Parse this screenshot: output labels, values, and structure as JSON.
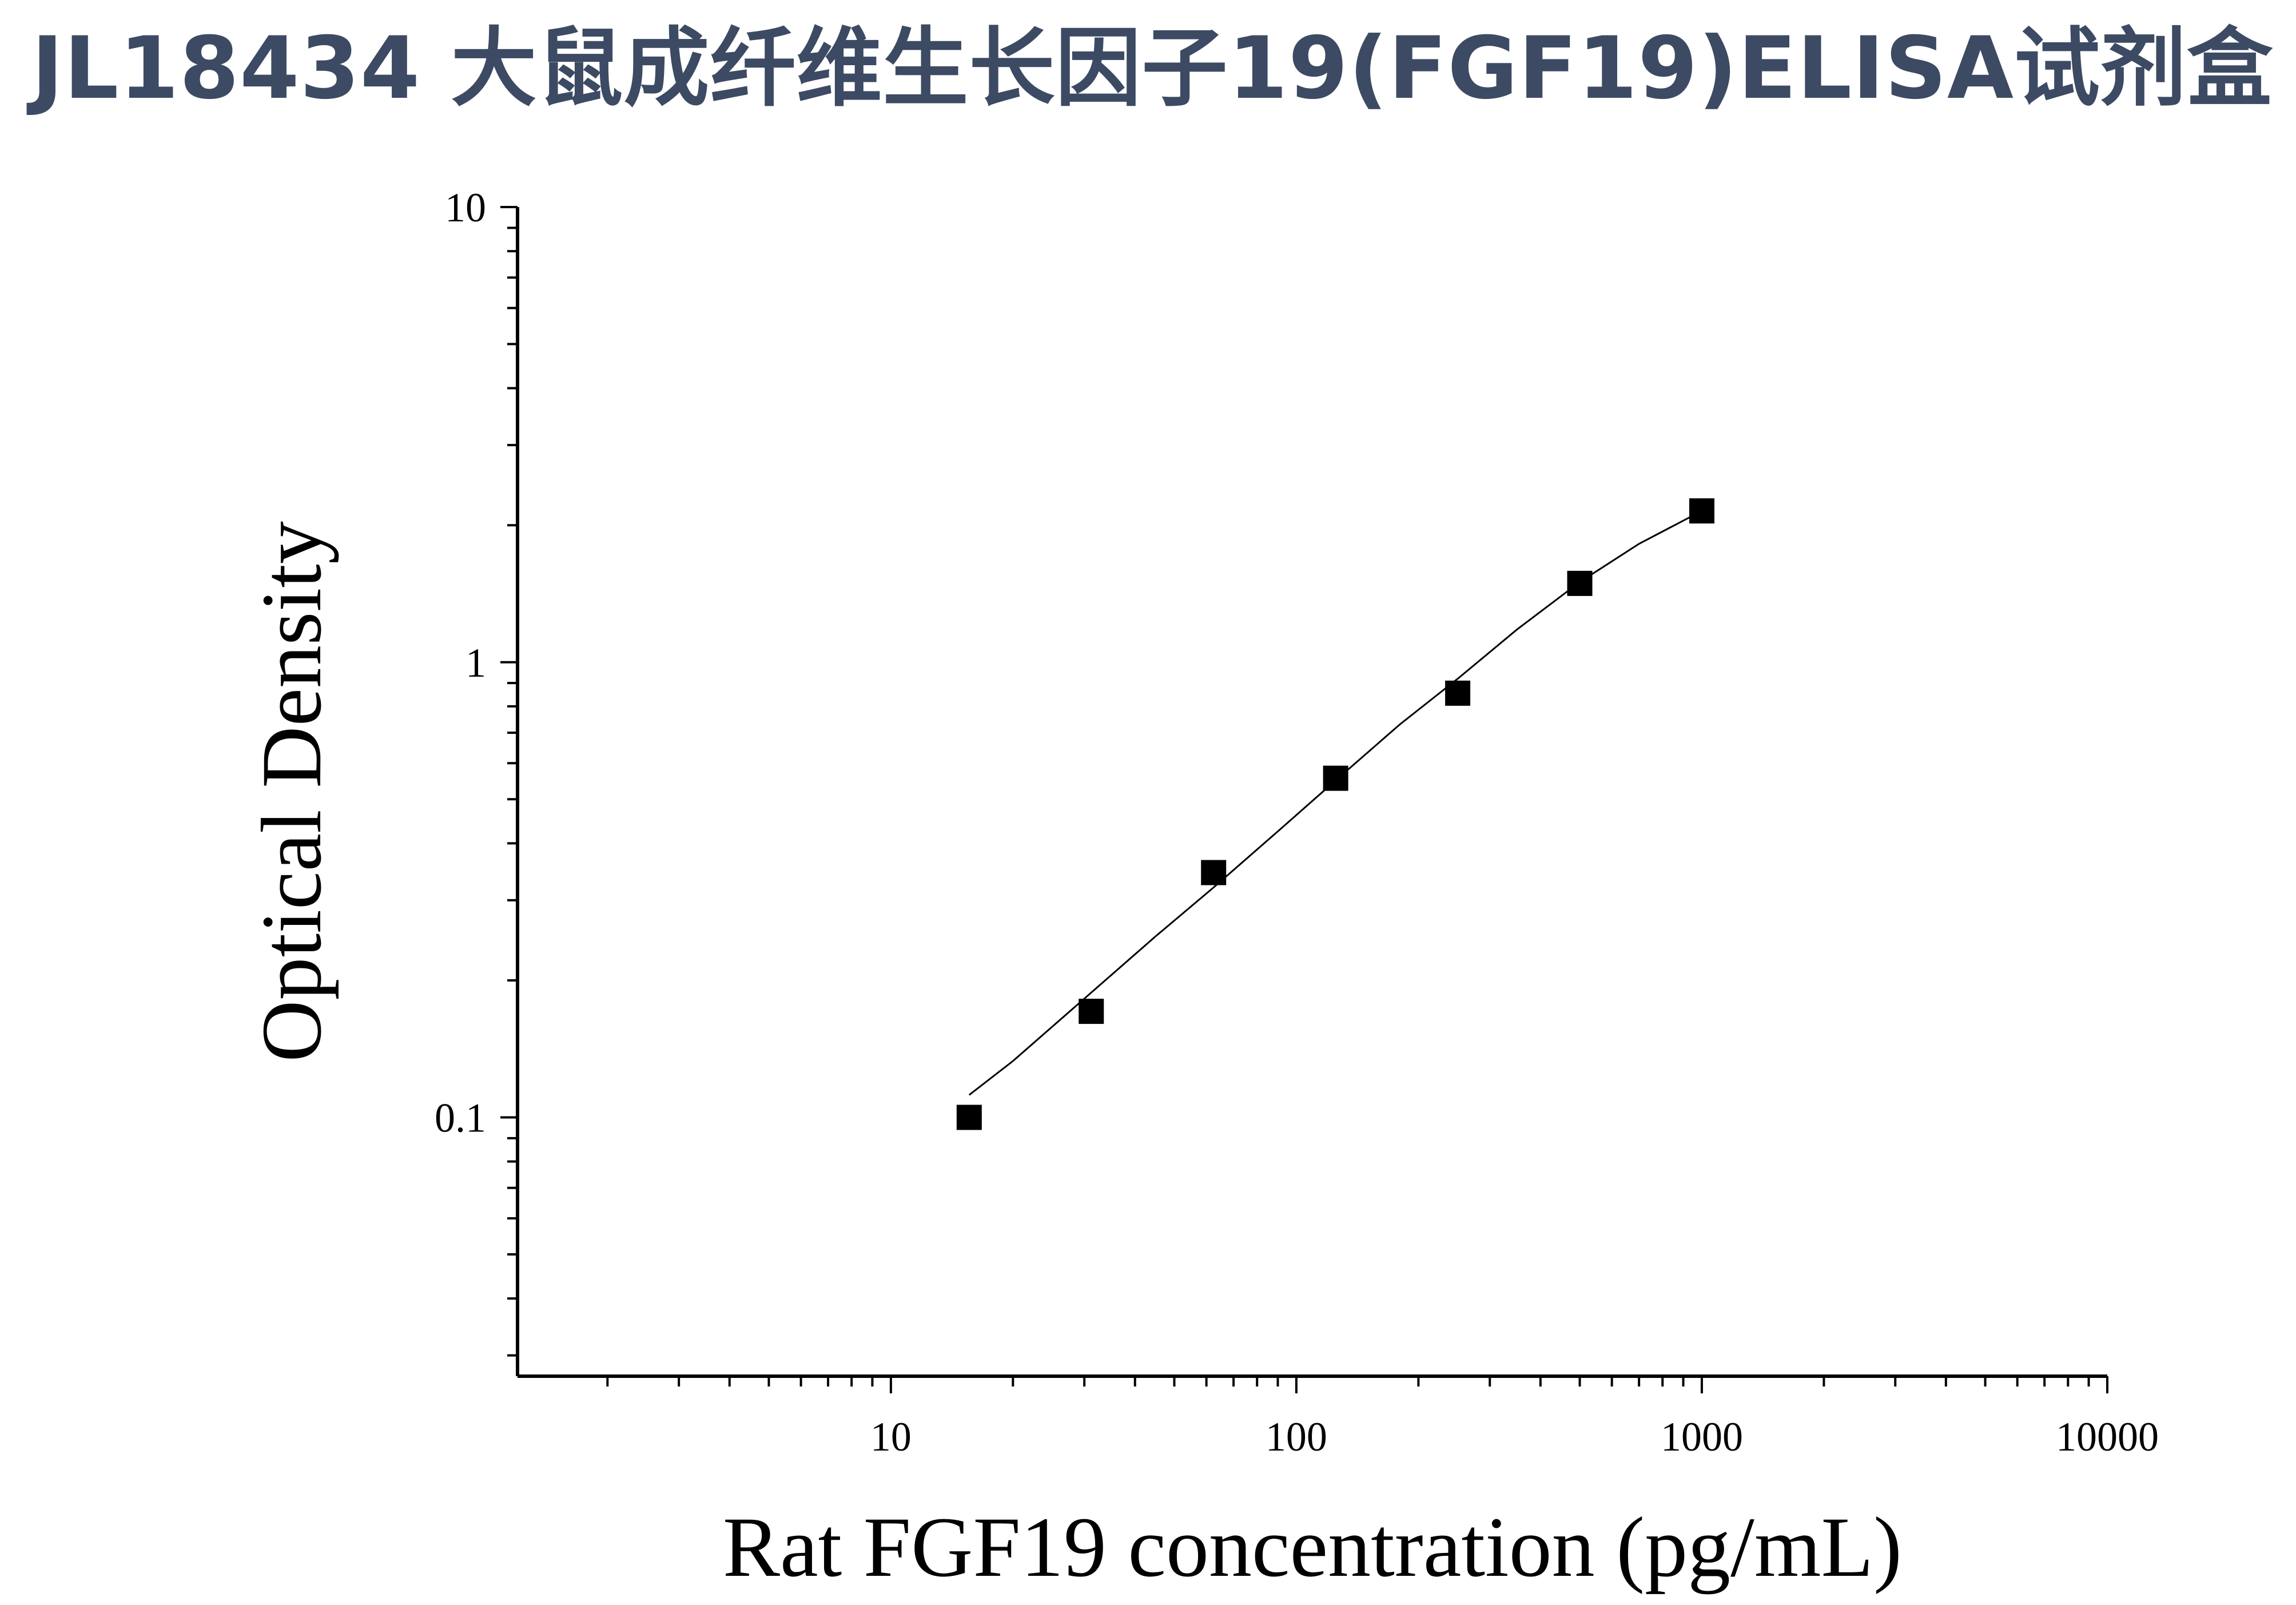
{
  "title": "JL18434 大鼠成纤维生长因子19(FGF19)ELISA试剂盒",
  "chart_data": {
    "type": "scatter",
    "xlabel": "Rat FGF19 concentration (pg/mL)",
    "ylabel": "Optical Density",
    "xscale": "log",
    "yscale": "log",
    "xlim": [
      1.2,
      10000
    ],
    "ylim": [
      0.027,
      10
    ],
    "x_ticks": [
      {
        "value": 10,
        "label": "10"
      },
      {
        "value": 100,
        "label": "100"
      },
      {
        "value": 1000,
        "label": "1000"
      },
      {
        "value": 10000,
        "label": "10000"
      }
    ],
    "y_ticks": [
      {
        "value": 0.1,
        "label": "0.1"
      },
      {
        "value": 1,
        "label": "1"
      },
      {
        "value": 10,
        "label": "10"
      }
    ],
    "grid": false,
    "series": [
      {
        "marker": "square",
        "color": "#000000",
        "x": [
          15.6,
          31.2,
          62.5,
          125,
          250,
          500,
          1000
        ],
        "y": [
          0.1,
          0.171,
          0.345,
          0.556,
          0.855,
          1.49,
          2.15
        ]
      }
    ],
    "fit_curve": {
      "color": "#000000",
      "x": [
        15.6,
        20,
        31.2,
        45,
        62.5,
        90,
        125,
        180,
        250,
        350,
        500,
        700,
        1000
      ],
      "y": [
        0.112,
        0.133,
        0.188,
        0.25,
        0.32,
        0.425,
        0.55,
        0.73,
        0.92,
        1.18,
        1.5,
        1.82,
        2.15
      ]
    }
  }
}
